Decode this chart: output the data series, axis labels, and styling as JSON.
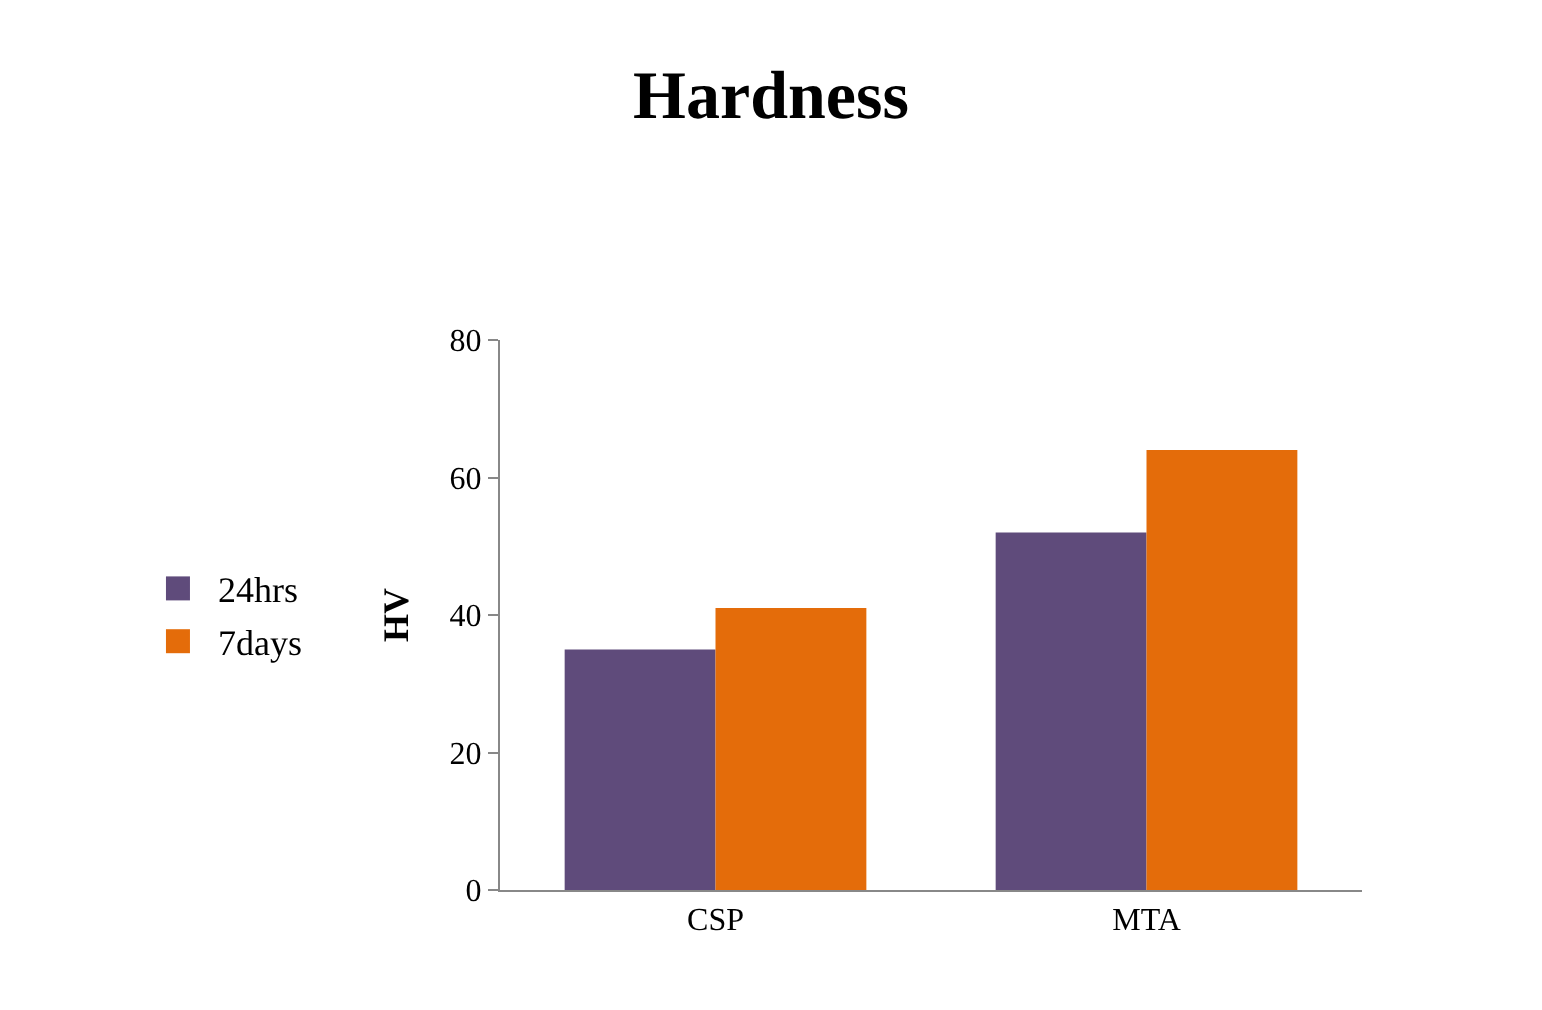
{
  "chart_data": {
    "type": "bar",
    "title": "Hardness",
    "ylabel": "HV",
    "categories": [
      "CSP",
      "MTA"
    ],
    "series": [
      {
        "name": "24hrs",
        "color": "#5f4b7b",
        "values": [
          35,
          52
        ]
      },
      {
        "name": "7days",
        "color": "#e46c0a",
        "values": [
          41,
          64
        ]
      }
    ],
    "ylim": [
      0,
      80
    ],
    "yticks": [
      0,
      20,
      40,
      60,
      80
    ],
    "grid": false,
    "legend": "left"
  }
}
